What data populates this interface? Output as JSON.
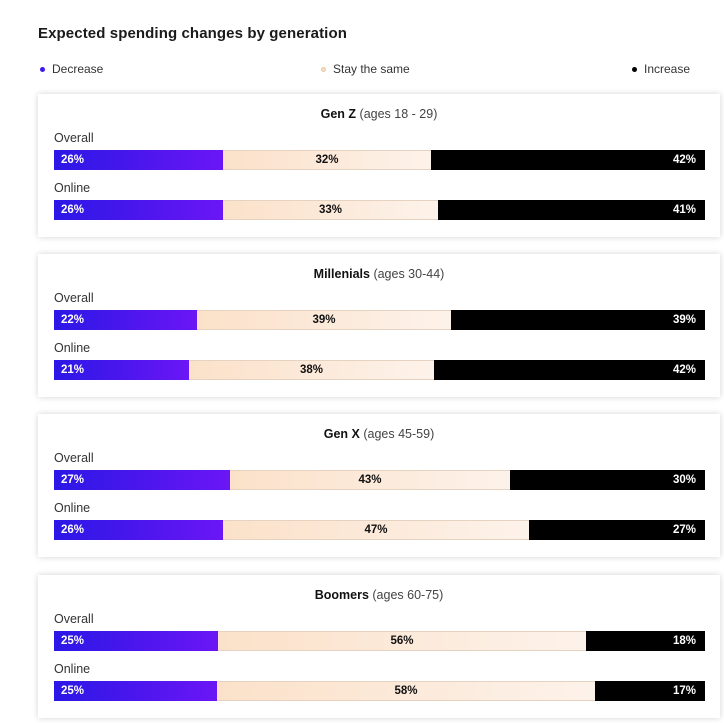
{
  "chart_data": {
    "type": "bar",
    "stacked": true,
    "orientation": "horizontal",
    "title": "Expected spending changes by generation",
    "legend": [
      {
        "label": "Decrease",
        "color": "#3a1aee"
      },
      {
        "label": "Stay the same",
        "color": "#f7dcc4"
      },
      {
        "label": "Increase",
        "color": "#000000"
      }
    ],
    "groups": [
      {
        "generation": "Gen Z",
        "ages": "(ages 18 - 29)",
        "rows": [
          {
            "label": "Overall",
            "values": [
              26,
              32,
              42
            ],
            "labels": [
              "26%",
              "32%",
              "42%"
            ]
          },
          {
            "label": "Online",
            "values": [
              26,
              33,
              41
            ],
            "labels": [
              "26%",
              "33%",
              "41%"
            ]
          }
        ]
      },
      {
        "generation": "Millenials",
        "ages": "(ages 30-44)",
        "rows": [
          {
            "label": "Overall",
            "values": [
              22,
              39,
              39
            ],
            "labels": [
              "22%",
              "39%",
              "39%"
            ]
          },
          {
            "label": "Online",
            "values": [
              21,
              38,
              42
            ],
            "labels": [
              "21%",
              "38%",
              "42%"
            ]
          }
        ]
      },
      {
        "generation": "Gen X",
        "ages": "(ages 45-59)",
        "rows": [
          {
            "label": "Overall",
            "values": [
              27,
              43,
              30
            ],
            "labels": [
              "27%",
              "43%",
              "30%"
            ]
          },
          {
            "label": "Online",
            "values": [
              26,
              47,
              27
            ],
            "labels": [
              "26%",
              "47%",
              "27%"
            ]
          }
        ]
      },
      {
        "generation": "Boomers",
        "ages": "(ages 60-75)",
        "rows": [
          {
            "label": "Overall",
            "values": [
              25,
              56,
              18
            ],
            "labels": [
              "25%",
              "56%",
              "18%"
            ]
          },
          {
            "label": "Online",
            "values": [
              25,
              58,
              17
            ],
            "labels": [
              "25%",
              "58%",
              "17%"
            ]
          }
        ]
      }
    ]
  }
}
